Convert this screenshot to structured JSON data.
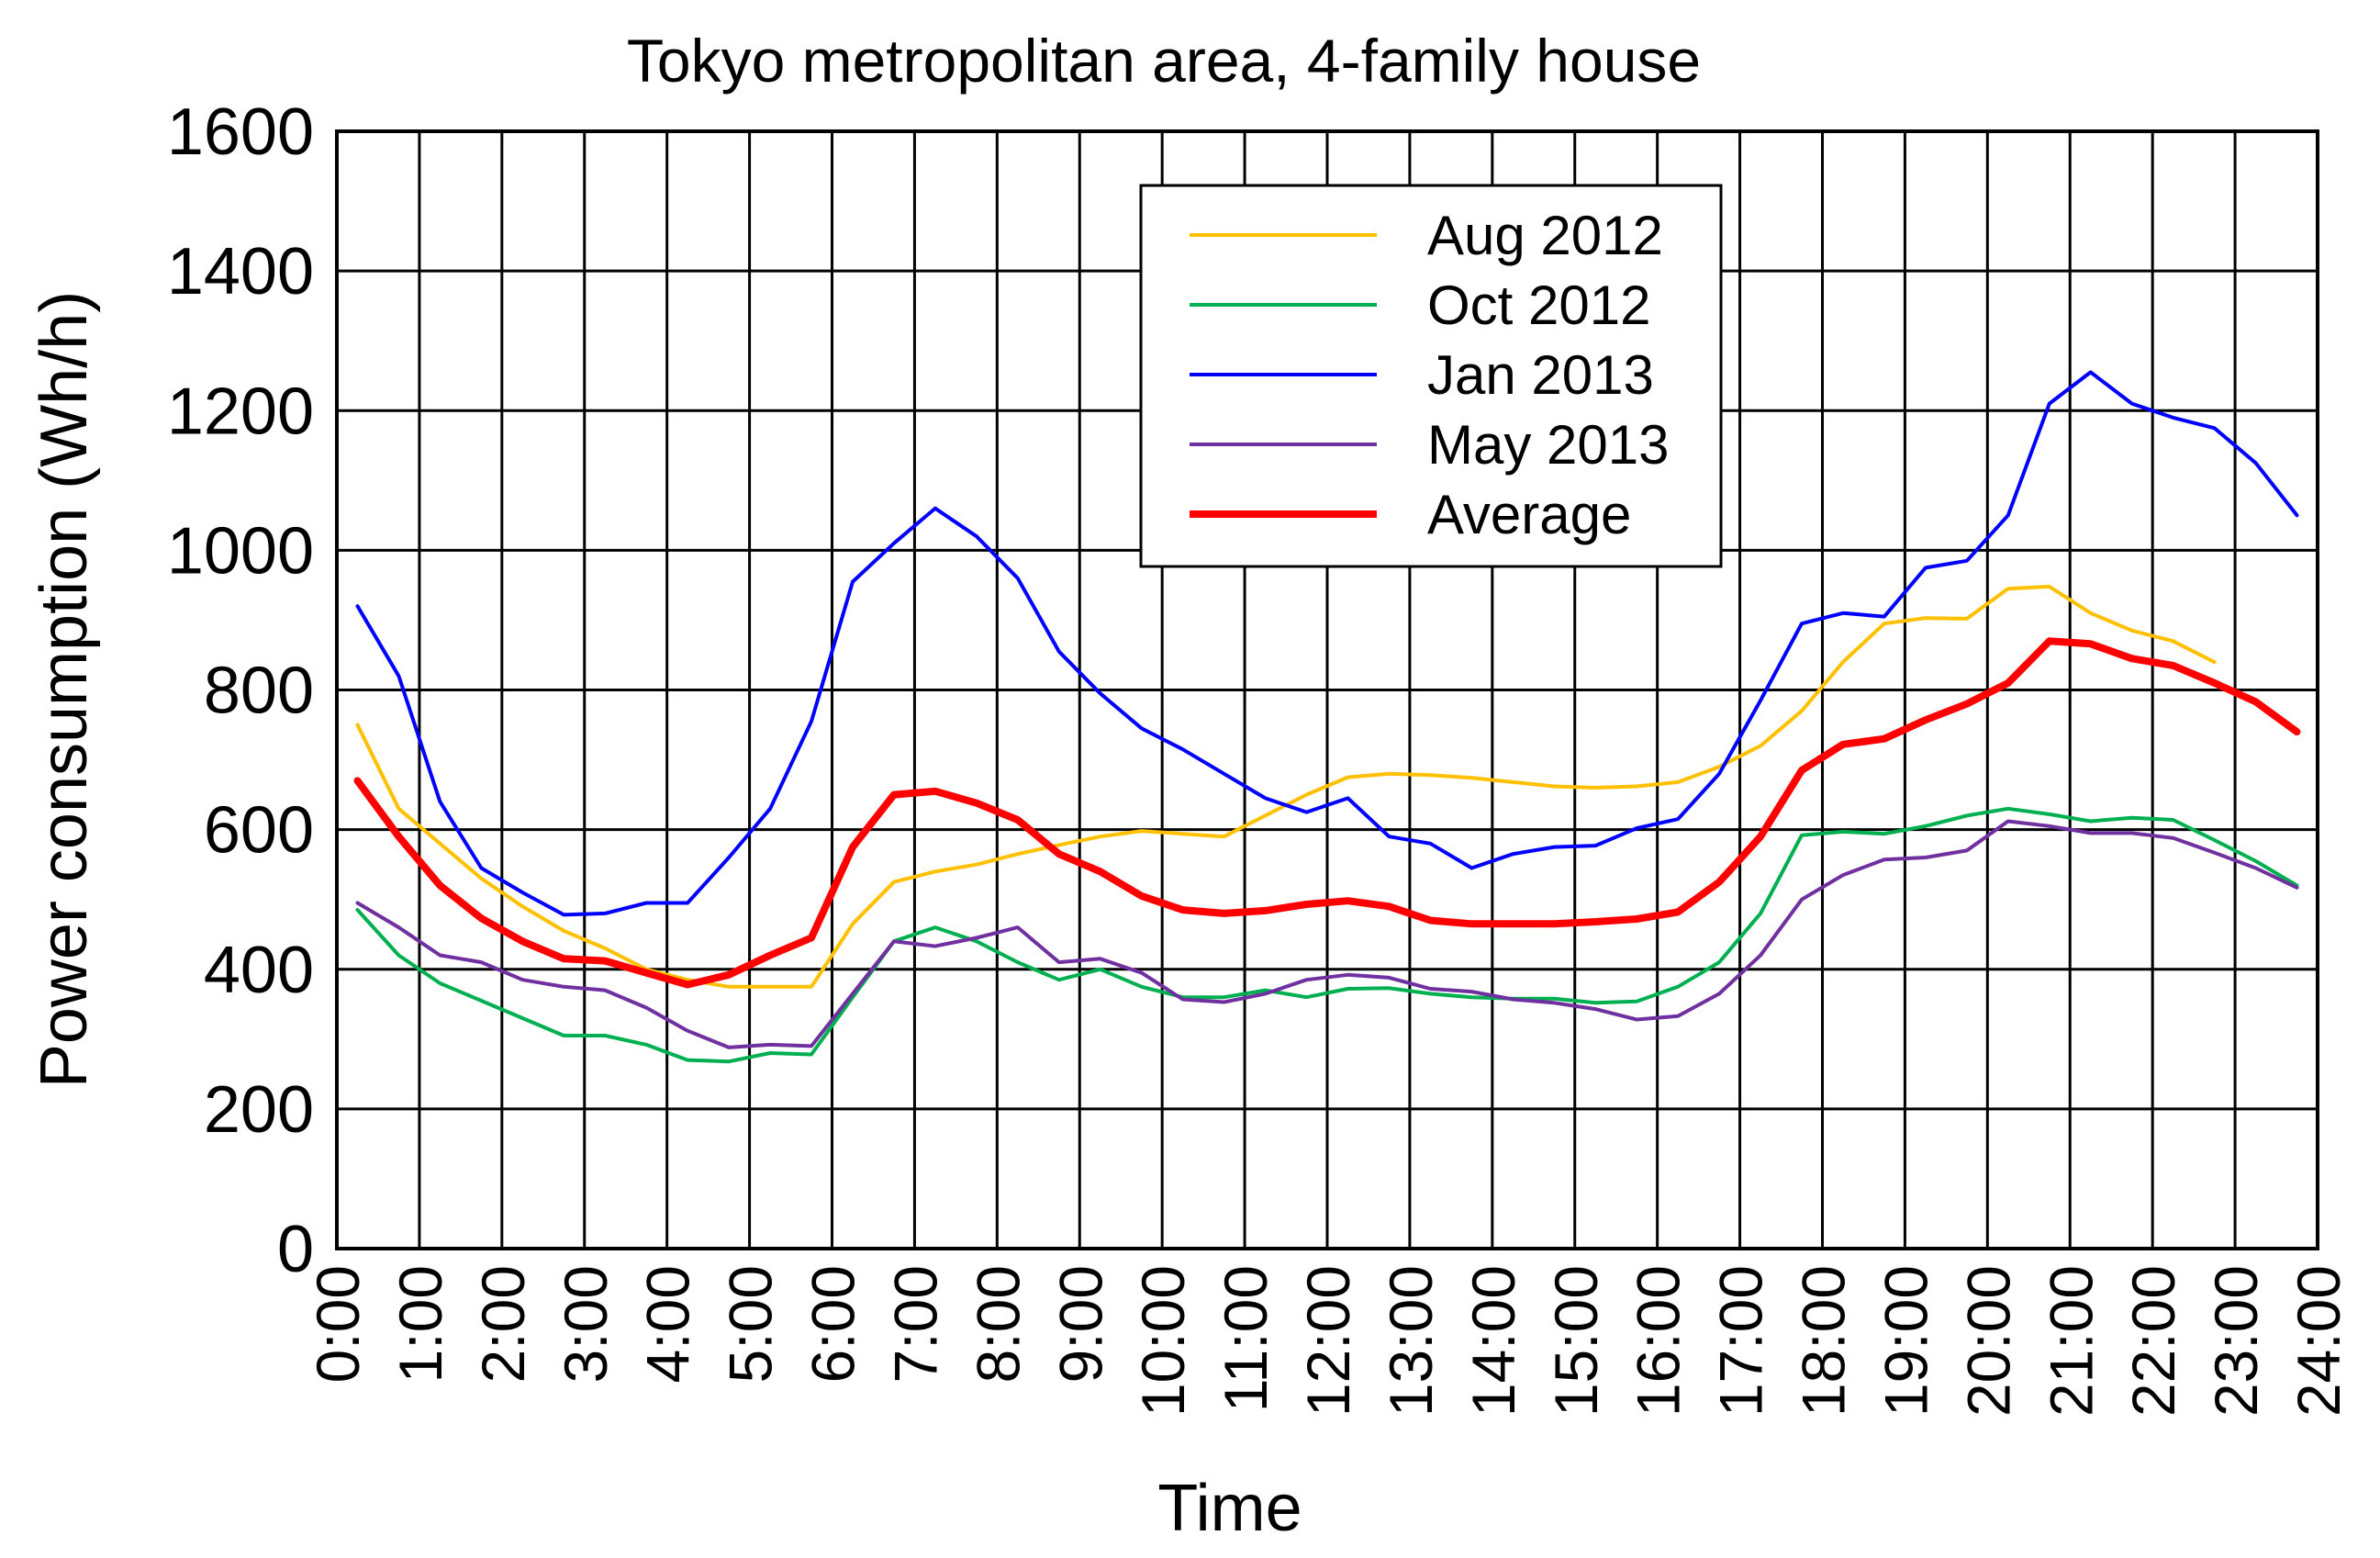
{
  "chart_data": {
    "type": "line",
    "title": "Tokyo metropolitan area, 4-family house",
    "xlabel": "Time",
    "ylabel": "Power consumption (Wh/h)",
    "ylim": [
      0,
      1600
    ],
    "yticks": [
      "0",
      "200",
      "400",
      "600",
      "800",
      "1000",
      "1200",
      "1400",
      "1600"
    ],
    "xlim": [
      0,
      24
    ],
    "xticks": [
      "0:00",
      "1:00",
      "2:00",
      "3:00",
      "4:00",
      "5:00",
      "6:00",
      "7:00",
      "8:00",
      "9:00",
      "10:00",
      "11:00",
      "12:00",
      "13:00",
      "14:00",
      "15:00",
      "16:00",
      "17:00",
      "18:00",
      "19:00",
      "20:00",
      "21:00",
      "22:00",
      "23:00",
      "24:00"
    ],
    "grid": true,
    "legend_position": "top-right (inside)",
    "x": [
      0.25,
      0.75,
      1.25,
      1.75,
      2.25,
      2.75,
      3.25,
      3.75,
      4.25,
      4.75,
      5.25,
      5.75,
      6.25,
      6.75,
      7.25,
      7.75,
      8.25,
      8.75,
      9.25,
      9.75,
      10.25,
      10.75,
      11.25,
      11.75,
      12.25,
      12.75,
      13.25,
      13.75,
      14.25,
      14.75,
      15.25,
      15.75,
      16.25,
      16.75,
      17.25,
      17.75,
      18.25,
      18.75,
      19.25,
      19.75,
      20.25,
      20.75,
      21.25,
      21.75,
      22.25,
      22.75,
      23.25,
      23.75
    ],
    "series": [
      {
        "name": "Aug 2012",
        "color": "#ffc000",
        "values": [
          750,
          630,
          580,
          530,
          490,
          455,
          430,
          400,
          385,
          375,
          375,
          375,
          465,
          525,
          540,
          550,
          565,
          578,
          590,
          598,
          594,
          590,
          620,
          650,
          675,
          680,
          678,
          674,
          668,
          662,
          660,
          662,
          668,
          690,
          720,
          770,
          840,
          895,
          903,
          902,
          945,
          948,
          910,
          885,
          870,
          840,
          null,
          null
        ]
      },
      {
        "name": "Oct 2012",
        "color": "#00b050",
        "values": [
          485,
          420,
          380,
          355,
          330,
          305,
          305,
          292,
          270,
          268,
          280,
          278,
          360,
          440,
          460,
          440,
          410,
          385,
          400,
          375,
          360,
          360,
          370,
          360,
          372,
          373,
          365,
          360,
          358,
          358,
          352,
          354,
          375,
          410,
          480,
          592,
          597,
          594,
          605,
          620,
          630,
          622,
          612,
          617,
          614,
          585,
          555,
          520
        ]
      },
      {
        "name": "Jan 2013",
        "color": "#0000ff",
        "values": [
          920,
          820,
          640,
          545,
          510,
          478,
          480,
          495,
          495,
          560,
          630,
          755,
          955,
          1010,
          1060,
          1020,
          960,
          855,
          795,
          745,
          715,
          680,
          645,
          625,
          645,
          590,
          580,
          545,
          565,
          575,
          577,
          602,
          615,
          680,
          785,
          895,
          910,
          905,
          975,
          985,
          1050,
          1210,
          1255,
          1210,
          1190,
          1175,
          1125,
          1050
        ]
      },
      {
        "name": "May 2013",
        "color": "#7030a0",
        "values": [
          495,
          460,
          420,
          410,
          385,
          375,
          370,
          345,
          312,
          288,
          292,
          290,
          365,
          440,
          433,
          445,
          460,
          410,
          415,
          395,
          357,
          353,
          365,
          385,
          392,
          388,
          372,
          368,
          357,
          352,
          343,
          328,
          333,
          365,
          420,
          500,
          535,
          557,
          560,
          570,
          612,
          605,
          595,
          595,
          588,
          567,
          545,
          517
        ]
      },
      {
        "name": "Average",
        "color": "#ff0000",
        "values": [
          670,
          590,
          520,
          473,
          440,
          415,
          412,
          395,
          378,
          392,
          420,
          445,
          575,
          650,
          655,
          638,
          614,
          565,
          540,
          505,
          485,
          480,
          484,
          493,
          498,
          490,
          470,
          465,
          465,
          465,
          468,
          472,
          482,
          525,
          590,
          685,
          722,
          730,
          757,
          780,
          810,
          870,
          866,
          845,
          835,
          810,
          783,
          740
        ]
      }
    ]
  }
}
